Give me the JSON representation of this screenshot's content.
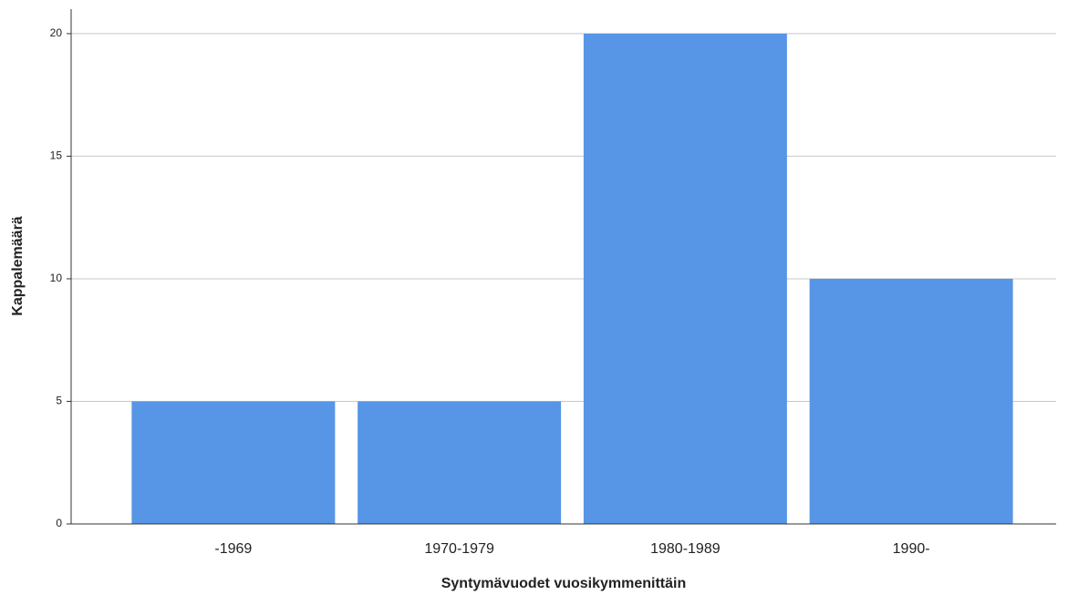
{
  "chart_data": {
    "type": "bar",
    "xlabel": "Syntymävuodet vuosikymmenittäin",
    "ylabel": "Kappalemäärä",
    "categories": [
      "-1969",
      "1970-1979",
      "1980-1989",
      "1990-"
    ],
    "values": [
      5,
      5,
      20,
      10
    ],
    "color": "#5795e6",
    "ylim": [
      0,
      21
    ],
    "yticks": [
      0,
      5,
      10,
      15,
      20
    ],
    "grid": true
  }
}
